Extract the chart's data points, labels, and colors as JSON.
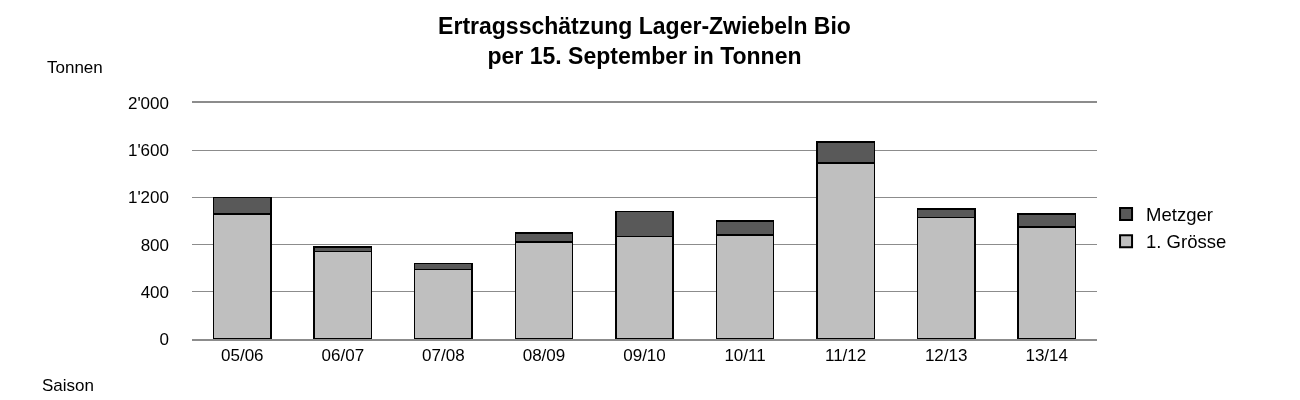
{
  "chart_data": {
    "type": "bar",
    "title": "Ertragsschätzung Lager-Zwiebeln Bio\nper 15. September in Tonnen",
    "xlabel": "Saison",
    "ylabel": "Tonnen",
    "categories": [
      "05/06",
      "06/07",
      "07/08",
      "08/09",
      "09/10",
      "10/11",
      "11/12",
      "12/13",
      "13/14"
    ],
    "series": [
      {
        "name": "1. Grösse",
        "color": "#bfbfbf",
        "values": [
          1060,
          740,
          590,
          820,
          870,
          880,
          1490,
          1030,
          950
        ]
      },
      {
        "name": "Metzger",
        "color": "#595959",
        "values": [
          140,
          40,
          50,
          80,
          210,
          120,
          180,
          70,
          110
        ]
      }
    ],
    "stacked": true,
    "ylim": [
      0,
      2000
    ],
    "yticks": [
      0,
      400,
      800,
      {
        "value": 1200,
        "label": "1'200"
      },
      {
        "value": 1600,
        "label": "1'600"
      },
      {
        "value": 2000,
        "label": "2'000"
      }
    ],
    "grid": "y",
    "legend": "right"
  }
}
